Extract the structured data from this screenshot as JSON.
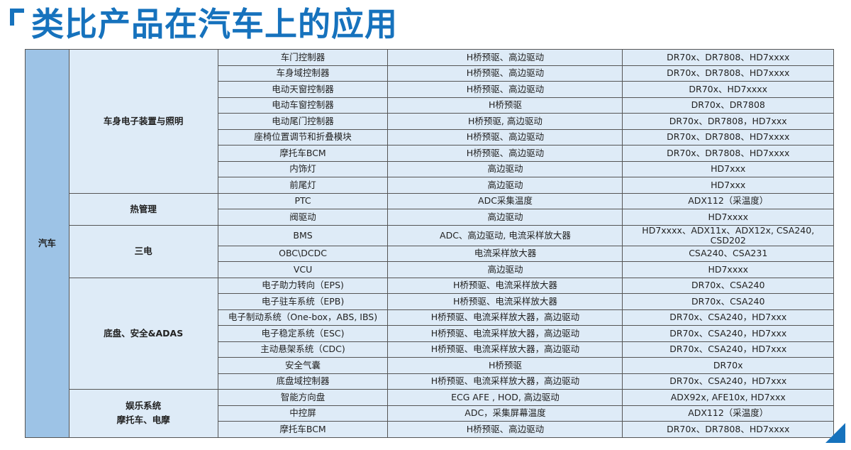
{
  "title": "类比产品在汽车上的应用",
  "colors": {
    "title": "#1672bd",
    "top_cell": "#9dc3e6",
    "cell": "#deebf7"
  },
  "table": {
    "top_category": "汽车",
    "groups": [
      {
        "category": [
          "车身电子装置与照明"
        ],
        "rows": [
          [
            "车门控制器",
            "H桥预驱、高边驱动",
            "DR70x、DR7808、HD7xxxx"
          ],
          [
            "车身域控制器",
            "H桥预驱、高边驱动",
            "DR70x、DR7808、HD7xxxx"
          ],
          [
            "电动天窗控制器",
            "H桥预驱、高边驱动",
            "DR70x、HD7xxxx"
          ],
          [
            "电动车窗控制器",
            "H桥预驱",
            "DR70x、DR7808"
          ],
          [
            "电动尾门控制器",
            "H桥预驱, 高边驱动",
            "DR70x、DR7808，HD7xxx"
          ],
          [
            "座椅位置调节和折叠模块",
            "H桥预驱、高边驱动",
            "DR70x、DR7808、HD7xxxx"
          ],
          [
            "摩托车BCM",
            "H桥预驱、高边驱动",
            "DR70x、DR7808、HD7xxxx"
          ],
          [
            "内饰灯",
            "高边驱动",
            "HD7xxx"
          ],
          [
            "前尾灯",
            "高边驱动",
            "HD7xxx"
          ]
        ]
      },
      {
        "category": [
          "热管理"
        ],
        "rows": [
          [
            "PTC",
            "ADC采集温度",
            "ADX112（采温度）"
          ],
          [
            "阀驱动",
            "高边驱动",
            "HD7xxxx"
          ]
        ]
      },
      {
        "category": [
          "三电"
        ],
        "rows": [
          [
            "BMS",
            "ADC、高边驱动, 电流采样放大器",
            "HD7xxxx、ADX11x、ADX12x, CSA240, CSD202"
          ],
          [
            "OBC\\DCDC",
            "电流采样放大器",
            "CSA240、CSA231"
          ],
          [
            "VCU",
            "高边驱动",
            "HD7xxxx"
          ]
        ]
      },
      {
        "category": [
          "底盘、安全&ADAS"
        ],
        "rows": [
          [
            "电子助力转向（EPS)",
            "H桥预驱、电流采样放大器",
            "DR70x、CSA240"
          ],
          [
            "电子驻车系统（EPB)",
            "H桥预驱、电流采样放大器",
            "DR70x、CSA240"
          ],
          [
            "电子制动系统（One-box，ABS, IBS)",
            "H桥预驱、电流采样放大器，高边驱动",
            "DR70x、CSA240，HD7xxx"
          ],
          [
            "电子稳定系统（ESC)",
            "H桥预驱、电流采样放大器，高边驱动",
            "DR70x、CSA240，HD7xxx"
          ],
          [
            "主动悬架系统（CDC)",
            "H桥预驱、电流采样放大器，高边驱动",
            "DR70x、CSA240，HD7xxx"
          ],
          [
            "安全气囊",
            "H桥预驱",
            "DR70x"
          ],
          [
            "底盘域控制器",
            "H桥预驱、电流采样放大器，高边驱动",
            "DR70x、CSA240，HD7xxx"
          ]
        ]
      },
      {
        "category": [
          "娱乐系统",
          "摩托车、电摩"
        ],
        "rows": [
          [
            "智能方向盘",
            "ECG AFE , HOD, 高边驱动",
            "ADX92x, AFE10x, HD7xxx"
          ],
          [
            "中控屏",
            "ADC，采集屏幕温度",
            "ADX112（采温度）"
          ],
          [
            "摩托车BCM",
            "H桥预驱、高边驱动",
            "DR70x、DR7808、HD7xxxx"
          ]
        ]
      }
    ]
  }
}
